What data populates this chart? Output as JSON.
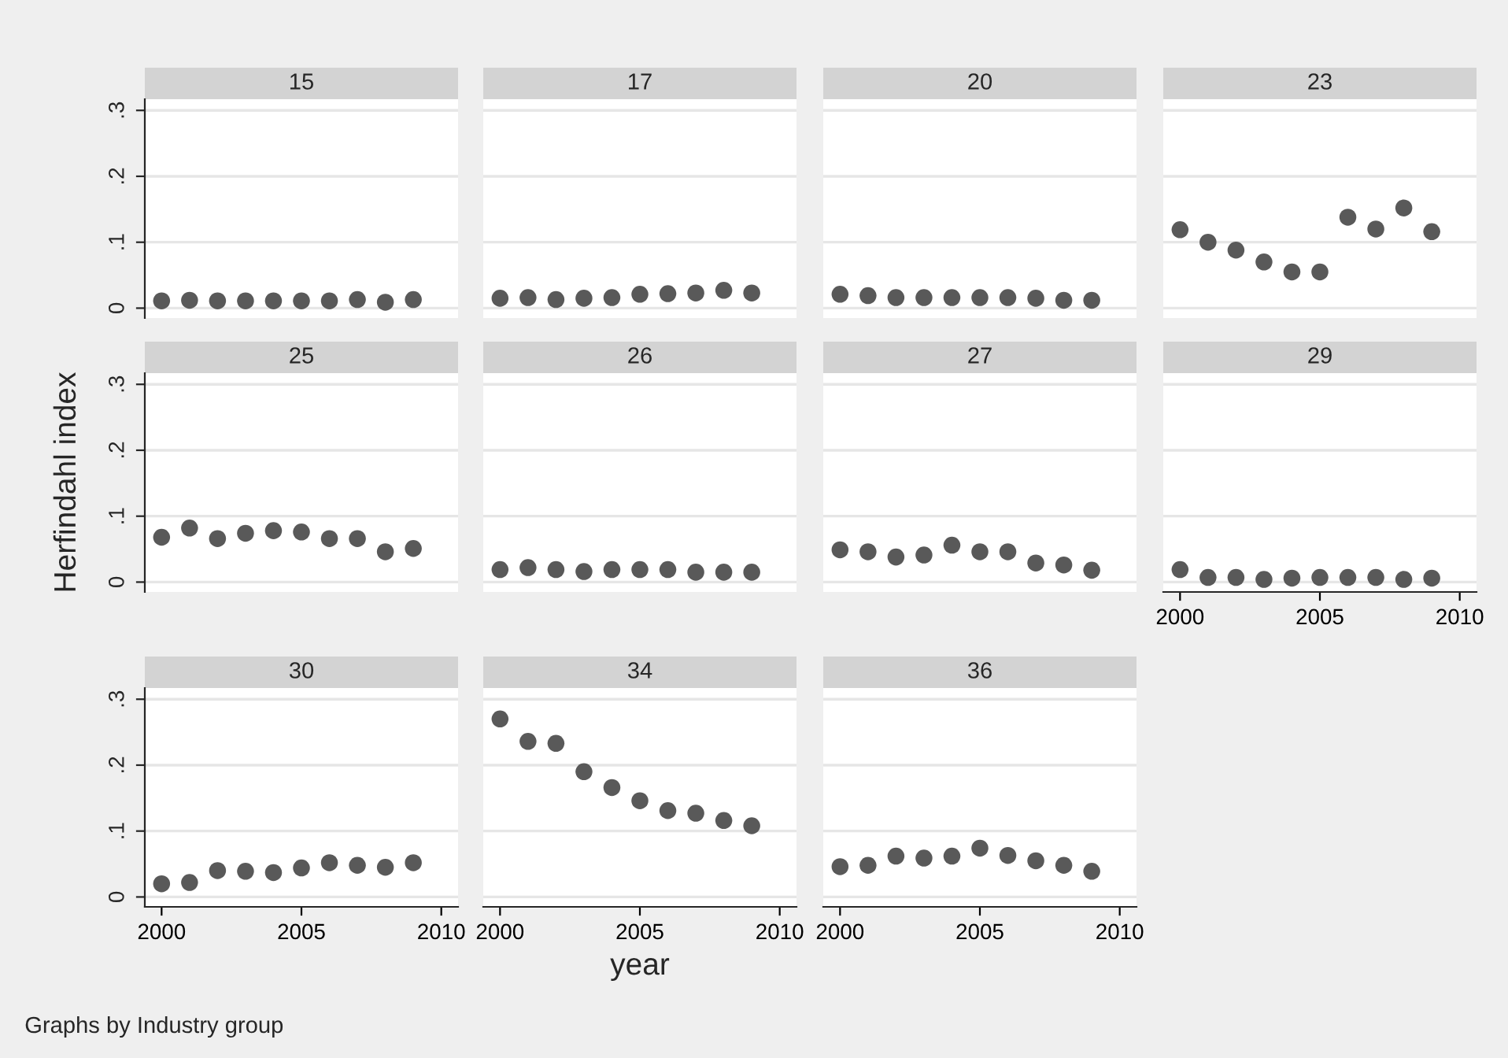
{
  "chart_data": [
    {
      "type": "scatter",
      "title": "15",
      "x": [
        2000,
        2001,
        2002,
        2003,
        2004,
        2005,
        2006,
        2007,
        2008,
        2009
      ],
      "series": [
        {
          "color": "#595959",
          "values": [
            0.011,
            0.012,
            0.011,
            0.011,
            0.011,
            0.011,
            0.011,
            0.013,
            0.009,
            0.013
          ]
        }
      ],
      "xlim": [
        1999.4,
        2010.6
      ],
      "ylim": [
        -0.015,
        0.317
      ],
      "yticks": [
        {
          "value": 0,
          "label": "0"
        },
        {
          "value": 0.1,
          "label": ".1"
        },
        {
          "value": 0.2,
          "label": ".2"
        },
        {
          "value": 0.3,
          "label": ".3"
        }
      ],
      "tick_labels": "y",
      "grid": "y",
      "marker": "circle"
    },
    {
      "type": "scatter",
      "title": "17",
      "x": [
        2000,
        2001,
        2002,
        2003,
        2004,
        2005,
        2006,
        2007,
        2008,
        2009
      ],
      "series": [
        {
          "color": "#595959",
          "values": [
            0.015,
            0.016,
            0.013,
            0.015,
            0.016,
            0.021,
            0.022,
            0.023,
            0.027,
            0.023
          ]
        }
      ],
      "xlim": [
        1999.4,
        2010.6
      ],
      "ylim": [
        -0.015,
        0.317
      ],
      "yticks": [
        {
          "value": 0,
          "label": null
        },
        {
          "value": 0.1,
          "label": null
        },
        {
          "value": 0.2,
          "label": null
        },
        {
          "value": 0.3,
          "label": null
        }
      ],
      "tick_labels": false,
      "grid": "y",
      "marker": "circle"
    },
    {
      "type": "scatter",
      "title": "20",
      "x": [
        2000,
        2001,
        2002,
        2003,
        2004,
        2005,
        2006,
        2007,
        2008,
        2009
      ],
      "series": [
        {
          "color": "#595959",
          "values": [
            0.021,
            0.019,
            0.016,
            0.016,
            0.016,
            0.016,
            0.016,
            0.015,
            0.012,
            0.012
          ]
        }
      ],
      "xlim": [
        1999.4,
        2010.6
      ],
      "ylim": [
        -0.015,
        0.317
      ],
      "yticks": [
        {
          "value": 0,
          "label": null
        },
        {
          "value": 0.1,
          "label": null
        },
        {
          "value": 0.2,
          "label": null
        },
        {
          "value": 0.3,
          "label": null
        }
      ],
      "tick_labels": false,
      "grid": "y",
      "marker": "circle"
    },
    {
      "type": "scatter",
      "title": "23",
      "x": [
        2000,
        2001,
        2002,
        2003,
        2004,
        2005,
        2006,
        2007,
        2008,
        2009
      ],
      "series": [
        {
          "color": "#595959",
          "values": [
            0.119,
            0.1,
            0.088,
            0.07,
            0.055,
            0.055,
            0.138,
            0.12,
            0.152,
            0.116
          ]
        }
      ],
      "xlim": [
        1999.4,
        2010.6
      ],
      "ylim": [
        -0.015,
        0.317
      ],
      "yticks": [
        {
          "value": 0,
          "label": null
        },
        {
          "value": 0.1,
          "label": null
        },
        {
          "value": 0.2,
          "label": null
        },
        {
          "value": 0.3,
          "label": null
        }
      ],
      "tick_labels": false,
      "grid": "y",
      "marker": "circle"
    },
    {
      "type": "scatter",
      "title": "25",
      "ylabel": "Herfindahl index",
      "x": [
        2000,
        2001,
        2002,
        2003,
        2004,
        2005,
        2006,
        2007,
        2008,
        2009
      ],
      "series": [
        {
          "color": "#595959",
          "values": [
            0.068,
            0.082,
            0.066,
            0.074,
            0.078,
            0.076,
            0.066,
            0.066,
            0.046,
            0.051
          ]
        }
      ],
      "xlim": [
        1999.4,
        2010.6
      ],
      "ylim": [
        -0.015,
        0.317
      ],
      "yticks": [
        {
          "value": 0,
          "label": "0"
        },
        {
          "value": 0.1,
          "label": ".1"
        },
        {
          "value": 0.2,
          "label": ".2"
        },
        {
          "value": 0.3,
          "label": ".3"
        }
      ],
      "tick_labels": "y",
      "grid": "y",
      "marker": "circle"
    },
    {
      "type": "scatter",
      "title": "26",
      "x": [
        2000,
        2001,
        2002,
        2003,
        2004,
        2005,
        2006,
        2007,
        2008,
        2009
      ],
      "series": [
        {
          "color": "#595959",
          "values": [
            0.019,
            0.022,
            0.019,
            0.016,
            0.019,
            0.019,
            0.019,
            0.015,
            0.015,
            0.015
          ]
        }
      ],
      "xlim": [
        1999.4,
        2010.6
      ],
      "ylim": [
        -0.015,
        0.317
      ],
      "yticks": [
        {
          "value": 0,
          "label": null
        },
        {
          "value": 0.1,
          "label": null
        },
        {
          "value": 0.2,
          "label": null
        },
        {
          "value": 0.3,
          "label": null
        }
      ],
      "tick_labels": false,
      "grid": "y",
      "marker": "circle"
    },
    {
      "type": "scatter",
      "title": "27",
      "x": [
        2000,
        2001,
        2002,
        2003,
        2004,
        2005,
        2006,
        2007,
        2008,
        2009
      ],
      "series": [
        {
          "color": "#595959",
          "values": [
            0.049,
            0.046,
            0.038,
            0.041,
            0.056,
            0.046,
            0.046,
            0.029,
            0.026,
            0.018
          ]
        }
      ],
      "xlim": [
        1999.4,
        2010.6
      ],
      "ylim": [
        -0.015,
        0.317
      ],
      "yticks": [
        {
          "value": 0,
          "label": null
        },
        {
          "value": 0.1,
          "label": null
        },
        {
          "value": 0.2,
          "label": null
        },
        {
          "value": 0.3,
          "label": null
        }
      ],
      "tick_labels": false,
      "grid": "y",
      "marker": "circle"
    },
    {
      "type": "scatter",
      "title": "29",
      "x": [
        2000,
        2001,
        2002,
        2003,
        2004,
        2005,
        2006,
        2007,
        2008,
        2009
      ],
      "series": [
        {
          "color": "#595959",
          "values": [
            0.019,
            0.007,
            0.007,
            0.004,
            0.006,
            0.007,
            0.007,
            0.007,
            0.004,
            0.006
          ]
        }
      ],
      "xlim": [
        1999.4,
        2010.6
      ],
      "ylim": [
        -0.015,
        0.317
      ],
      "xticks": [
        2000,
        2005,
        2010
      ],
      "yticks": [
        {
          "value": 0,
          "label": null
        },
        {
          "value": 0.1,
          "label": null
        },
        {
          "value": 0.2,
          "label": null
        },
        {
          "value": 0.3,
          "label": null
        }
      ],
      "tick_labels": "x",
      "grid": "y",
      "marker": "circle"
    },
    {
      "type": "scatter",
      "title": "30",
      "annotations": [
        "Graphs by Industry group"
      ],
      "x": [
        2000,
        2001,
        2002,
        2003,
        2004,
        2005,
        2006,
        2007,
        2008,
        2009
      ],
      "series": [
        {
          "color": "#595959",
          "values": [
            0.02,
            0.022,
            0.04,
            0.039,
            0.037,
            0.044,
            0.052,
            0.048,
            0.045,
            0.052
          ]
        }
      ],
      "xlim": [
        1999.4,
        2010.6
      ],
      "ylim": [
        -0.015,
        0.317
      ],
      "xticks": [
        2000,
        2005,
        2010
      ],
      "yticks": [
        {
          "value": 0,
          "label": "0"
        },
        {
          "value": 0.1,
          "label": ".1"
        },
        {
          "value": 0.2,
          "label": ".2"
        },
        {
          "value": 0.3,
          "label": ".3"
        }
      ],
      "grid": "y",
      "marker": "circle"
    },
    {
      "type": "scatter",
      "title": "34",
      "xlabel": "year",
      "x": [
        2000,
        2001,
        2002,
        2003,
        2004,
        2005,
        2006,
        2007,
        2008,
        2009
      ],
      "series": [
        {
          "color": "#595959",
          "values": [
            0.27,
            0.236,
            0.233,
            0.19,
            0.166,
            0.146,
            0.131,
            0.127,
            0.116,
            0.108
          ]
        }
      ],
      "xlim": [
        1999.4,
        2010.6
      ],
      "ylim": [
        -0.015,
        0.317
      ],
      "xticks": [
        2000,
        2005,
        2010
      ],
      "yticks": [
        {
          "value": 0,
          "label": null
        },
        {
          "value": 0.1,
          "label": null
        },
        {
          "value": 0.2,
          "label": null
        },
        {
          "value": 0.3,
          "label": null
        }
      ],
      "tick_labels": "x",
      "grid": "y",
      "marker": "circle"
    },
    {
      "type": "scatter",
      "title": "36",
      "x": [
        2000,
        2001,
        2002,
        2003,
        2004,
        2005,
        2006,
        2007,
        2008,
        2009
      ],
      "series": [
        {
          "color": "#595959",
          "values": [
            0.046,
            0.048,
            0.062,
            0.059,
            0.062,
            0.074,
            0.063,
            0.055,
            0.048,
            0.039
          ]
        }
      ],
      "xlim": [
        1999.4,
        2010.6
      ],
      "ylim": [
        -0.015,
        0.317
      ],
      "xticks": [
        2000,
        2005,
        2010
      ],
      "yticks": [
        {
          "value": 0,
          "label": null
        },
        {
          "value": 0.1,
          "label": null
        },
        {
          "value": 0.2,
          "label": null
        },
        {
          "value": 0.3,
          "label": null
        }
      ],
      "tick_labels": "x",
      "grid": "y",
      "marker": "circle"
    }
  ]
}
